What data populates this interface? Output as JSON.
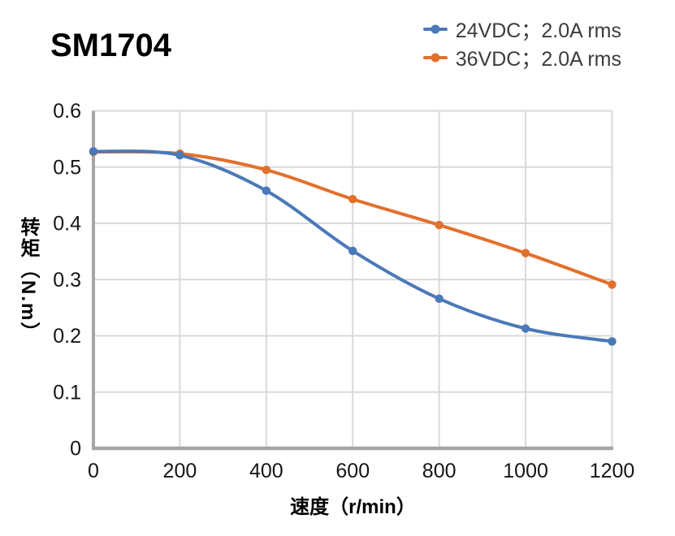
{
  "title": "SM1704",
  "legend": {
    "items": [
      {
        "label": "24VDC；2.0A rms"
      },
      {
        "label": "36VDC；2.0A rms"
      }
    ]
  },
  "chart_data": {
    "type": "line",
    "title": "SM1704",
    "x": [
      0,
      200,
      400,
      600,
      800,
      1000,
      1200
    ],
    "series": [
      {
        "name": "24VDC；2.0A rms",
        "color": "#4a79b8",
        "values": [
          0.528,
          0.521,
          0.458,
          0.351,
          0.266,
          0.213,
          0.19
        ]
      },
      {
        "name": "36VDC；2.0A rms",
        "color": "#e2702d",
        "values": [
          0.527,
          0.524,
          0.495,
          0.443,
          0.397,
          0.347,
          0.291
        ]
      }
    ],
    "xlabel": "速度（r/min）",
    "ylabel": "转矩（N.m）",
    "xlim": [
      0,
      1200
    ],
    "ylim": [
      0,
      0.6
    ],
    "x_ticks": [
      "0",
      "200",
      "400",
      "600",
      "800",
      "1000",
      "1200"
    ],
    "y_ticks": [
      "0",
      "0.1",
      "0.2",
      "0.3",
      "0.4",
      "0.5",
      "0.6"
    ],
    "grid": true,
    "line_style": "smooth",
    "markers": "circle",
    "legend_position": "top-right",
    "colors": {
      "grid": "#d9d9d9",
      "axis": "#a6a6a6",
      "tick_text": "#161616",
      "title_text": "#000000",
      "legend_text": "#3c3c3c"
    }
  }
}
